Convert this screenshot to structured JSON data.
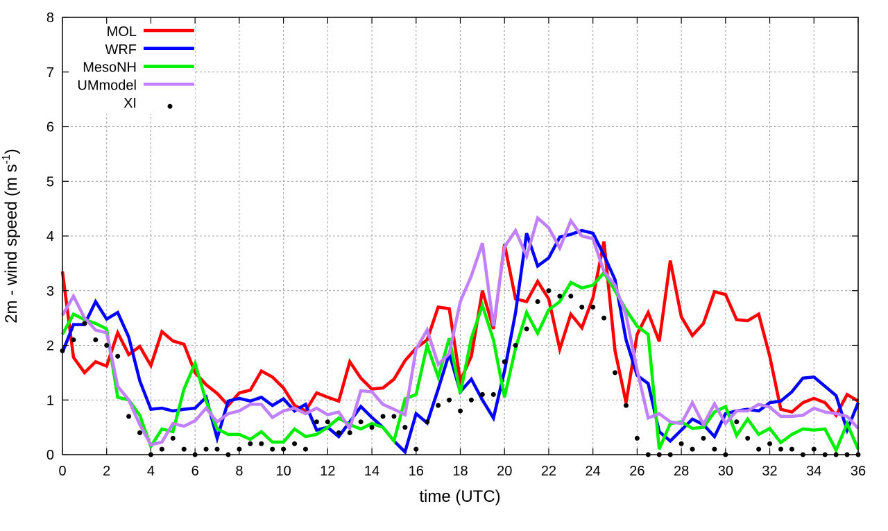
{
  "chart_data": {
    "type": "line",
    "title": "",
    "xlabel": "time (UTC)",
    "ylabel": "2m - wind speed  (m s",
    "ylabel_sup": "-1",
    "ylabel_end": ")",
    "xlim": [
      0,
      36
    ],
    "ylim": [
      0,
      8
    ],
    "xticks": [
      0,
      2,
      4,
      6,
      8,
      10,
      12,
      14,
      16,
      18,
      20,
      22,
      24,
      26,
      28,
      30,
      32,
      34,
      36
    ],
    "yticks": [
      0,
      1,
      2,
      3,
      4,
      5,
      6,
      7,
      8
    ],
    "grid": true,
    "legend_position": "top-left",
    "x": [
      0,
      0.5,
      1,
      1.5,
      2,
      2.5,
      3,
      3.5,
      4,
      4.5,
      5,
      5.5,
      6,
      6.5,
      7,
      7.5,
      8,
      8.5,
      9,
      9.5,
      10,
      10.5,
      11,
      11.5,
      12,
      12.5,
      13,
      13.5,
      14,
      14.5,
      15,
      15.5,
      16,
      16.5,
      17,
      17.5,
      18,
      18.5,
      19,
      19.5,
      20,
      20.5,
      21,
      21.5,
      22,
      22.5,
      23,
      23.5,
      24,
      24.5,
      25,
      25.5,
      26,
      26.5,
      27,
      27.5,
      28,
      28.5,
      29,
      29.5,
      30,
      30.5,
      31,
      31.5,
      32,
      32.5,
      33,
      33.5,
      34,
      34.5,
      35,
      35.5,
      36
    ],
    "series": [
      {
        "name": "MOL",
        "style": "line",
        "color": "#ff0000",
        "values": [
          3.35,
          1.78,
          1.5,
          1.7,
          1.62,
          2.23,
          1.83,
          1.98,
          1.63,
          2.25,
          2.08,
          2.02,
          1.5,
          1.28,
          1.12,
          0.9,
          1.13,
          1.18,
          1.53,
          1.42,
          1.22,
          0.9,
          0.8,
          1.13,
          1.05,
          0.98,
          1.7,
          1.4,
          1.2,
          1.22,
          1.38,
          1.72,
          1.95,
          2.1,
          2.7,
          2.67,
          1.35,
          1.8,
          3.0,
          2.3,
          3.85,
          2.85,
          2.8,
          3.17,
          2.85,
          1.93,
          2.57,
          2.32,
          2.87,
          3.9,
          1.9,
          0.95,
          2.2,
          2.6,
          2.07,
          3.55,
          2.52,
          2.18,
          2.4,
          2.98,
          2.93,
          2.47,
          2.45,
          2.57,
          1.8,
          0.83,
          0.78,
          0.95,
          1.03,
          0.95,
          0.72,
          1.1,
          0.98
        ]
      },
      {
        "name": "WRF",
        "style": "line",
        "color": "#0000ff",
        "values": [
          1.87,
          2.38,
          2.38,
          2.8,
          2.48,
          2.6,
          2.15,
          1.35,
          0.83,
          0.85,
          0.8,
          0.83,
          0.85,
          1.05,
          0.3,
          0.98,
          1.03,
          0.98,
          1.05,
          0.9,
          1.02,
          0.8,
          0.92,
          0.45,
          0.5,
          0.33,
          0.6,
          0.88,
          0.68,
          0.5,
          0.25,
          0.05,
          0.75,
          0.58,
          1.2,
          1.85,
          1.15,
          1.38,
          1.0,
          0.67,
          1.53,
          2.6,
          4.05,
          3.45,
          3.6,
          3.98,
          4.03,
          4.1,
          4.05,
          3.65,
          3.2,
          2.1,
          1.45,
          1.3,
          0.42,
          0.25,
          0.45,
          0.65,
          0.55,
          0.33,
          0.75,
          0.8,
          0.83,
          0.8,
          0.95,
          0.98,
          1.15,
          1.4,
          1.42,
          1.25,
          1.08,
          0.45,
          0.95
        ]
      },
      {
        "name": "MesoNH",
        "style": "line",
        "color": "#00ee00",
        "values": [
          2.2,
          2.57,
          2.47,
          2.4,
          2.3,
          1.05,
          1.0,
          0.72,
          0.15,
          0.47,
          0.42,
          1.2,
          1.67,
          0.98,
          0.47,
          0.37,
          0.37,
          0.28,
          0.42,
          0.23,
          0.23,
          0.47,
          0.33,
          0.37,
          0.5,
          0.67,
          0.55,
          0.47,
          0.57,
          0.5,
          0.25,
          1.02,
          1.1,
          2.0,
          1.42,
          2.13,
          1.12,
          2.13,
          2.73,
          2.1,
          1.05,
          1.95,
          2.6,
          2.22,
          2.65,
          2.8,
          3.15,
          3.05,
          3.1,
          3.33,
          3.0,
          2.65,
          2.35,
          2.2,
          0.1,
          0.57,
          0.6,
          0.48,
          0.5,
          0.78,
          0.88,
          0.35,
          0.65,
          0.37,
          0.48,
          0.22,
          0.37,
          0.47,
          0.45,
          0.47,
          0.08,
          0.57,
          0.1
        ]
      },
      {
        "name": "UMmodel",
        "style": "line",
        "color": "#c080ff",
        "values": [
          2.55,
          2.9,
          2.5,
          2.28,
          2.23,
          1.25,
          1.0,
          0.55,
          0.18,
          0.23,
          0.57,
          0.52,
          0.62,
          0.85,
          0.6,
          0.75,
          0.8,
          0.92,
          0.92,
          0.68,
          0.8,
          0.85,
          0.75,
          0.85,
          0.73,
          0.78,
          0.48,
          1.17,
          1.15,
          0.92,
          0.83,
          0.73,
          1.93,
          2.28,
          1.65,
          1.85,
          2.8,
          3.27,
          3.87,
          2.35,
          3.8,
          4.1,
          3.63,
          4.33,
          4.15,
          3.78,
          4.28,
          4.0,
          3.95,
          3.35,
          3.1,
          2.55,
          1.55,
          0.67,
          0.75,
          0.6,
          0.57,
          0.95,
          0.55,
          0.93,
          0.57,
          0.8,
          0.8,
          0.92,
          0.87,
          0.7,
          0.7,
          0.72,
          0.85,
          0.78,
          0.75,
          0.7,
          0.48
        ]
      },
      {
        "name": "XI",
        "style": "points",
        "color": "#000000",
        "values": [
          1.9,
          2.1,
          2.4,
          2.1,
          2.0,
          1.8,
          0.7,
          0.4,
          0.0,
          0.1,
          0.3,
          0.1,
          0.0,
          0.1,
          0.1,
          0.0,
          0.1,
          0.2,
          0.2,
          0.1,
          0.1,
          0.2,
          0.1,
          0.6,
          0.6,
          0.4,
          0.4,
          0.6,
          0.5,
          0.7,
          0.7,
          0.5,
          0.1,
          0.6,
          0.9,
          1.0,
          0.8,
          1.0,
          1.1,
          1.1,
          1.7,
          2.0,
          2.3,
          2.8,
          3.0,
          2.9,
          2.9,
          2.7,
          2.7,
          2.5,
          1.5,
          0.9,
          0.3,
          0.0,
          0.0,
          0.0,
          0.2,
          0.1,
          0.3,
          0.1,
          0.0,
          0.6,
          0.3,
          0.1,
          0.2,
          0.1,
          0.1,
          0.0,
          0.1,
          0.0,
          0.0,
          0.0,
          0.0
        ]
      }
    ]
  }
}
